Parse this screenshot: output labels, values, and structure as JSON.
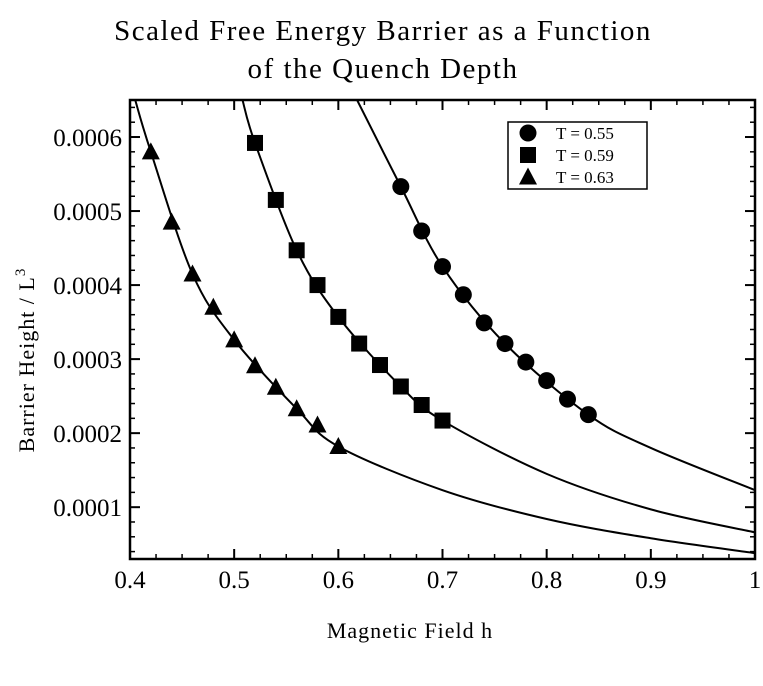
{
  "chart_data": {
    "type": "scatter",
    "title_lines": [
      "Scaled Free Energy Barrier as a Function",
      "of the Quench Depth"
    ],
    "xlabel": "Magnetic Field h",
    "ylabel": "Barrier Height / L",
    "ylabel_superscript": "3",
    "xlim": [
      0.4,
      1.0
    ],
    "ylim": [
      3e-05,
      0.00065
    ],
    "x_ticks": [
      0.4,
      0.5,
      0.6,
      0.7,
      0.8,
      0.9,
      1.0
    ],
    "x_tick_labels": [
      "0.4",
      "0.5",
      "0.6",
      "0.7",
      "0.8",
      "0.9",
      "1"
    ],
    "y_ticks": [
      0.0001,
      0.0002,
      0.0003,
      0.0004,
      0.0005,
      0.0006
    ],
    "y_tick_labels": [
      "0.0001",
      "0.0002",
      "0.0003",
      "0.0004",
      "0.0005",
      "0.0006"
    ],
    "grid": false,
    "legend_position": "top-right",
    "series": [
      {
        "name": "T =  0.55",
        "marker": "circle",
        "x": [
          0.66,
          0.68,
          0.7,
          0.72,
          0.74,
          0.76,
          0.78,
          0.8,
          0.82,
          0.84
        ],
        "y": [
          0.000533,
          0.000473,
          0.000425,
          0.000387,
          0.000349,
          0.000321,
          0.000296,
          0.000271,
          0.000246,
          0.000225
        ],
        "fit": {
          "x": [
            0.618,
            0.66,
            0.7,
            0.76,
            0.84,
            0.9,
            1.0
          ],
          "y": [
            0.00065,
            0.000533,
            0.000425,
            0.000321,
            0.000225,
            0.00018,
            0.000123
          ]
        }
      },
      {
        "name": "T =  0.59",
        "marker": "square",
        "x": [
          0.52,
          0.54,
          0.56,
          0.58,
          0.6,
          0.62,
          0.64,
          0.66,
          0.68,
          0.7
        ],
        "y": [
          0.000592,
          0.000515,
          0.000447,
          0.0004,
          0.000357,
          0.000321,
          0.000292,
          0.000263,
          0.000238,
          0.000217
        ],
        "fit": {
          "x": [
            0.508,
            0.52,
            0.56,
            0.6,
            0.66,
            0.7,
            0.8,
            0.9,
            1.0
          ],
          "y": [
            0.00065,
            0.000592,
            0.000447,
            0.000357,
            0.000263,
            0.000217,
            0.000145,
            9.7e-05,
            6.6e-05
          ]
        }
      },
      {
        "name": "T =  0.63",
        "marker": "triangle",
        "x": [
          0.42,
          0.44,
          0.46,
          0.48,
          0.5,
          0.52,
          0.54,
          0.56,
          0.58,
          0.6
        ],
        "y": [
          0.00058,
          0.000485,
          0.000415,
          0.00037,
          0.000326,
          0.000291,
          0.000262,
          0.000233,
          0.000211,
          0.000182
        ],
        "fit": {
          "x": [
            0.405,
            0.42,
            0.46,
            0.5,
            0.56,
            0.6,
            0.7,
            0.8,
            0.9,
            1.0
          ],
          "y": [
            0.00065,
            0.00058,
            0.000415,
            0.000326,
            0.000233,
            0.000182,
            0.000123,
            8.4e-05,
            5.8e-05,
            3.8e-05
          ]
        }
      }
    ]
  }
}
